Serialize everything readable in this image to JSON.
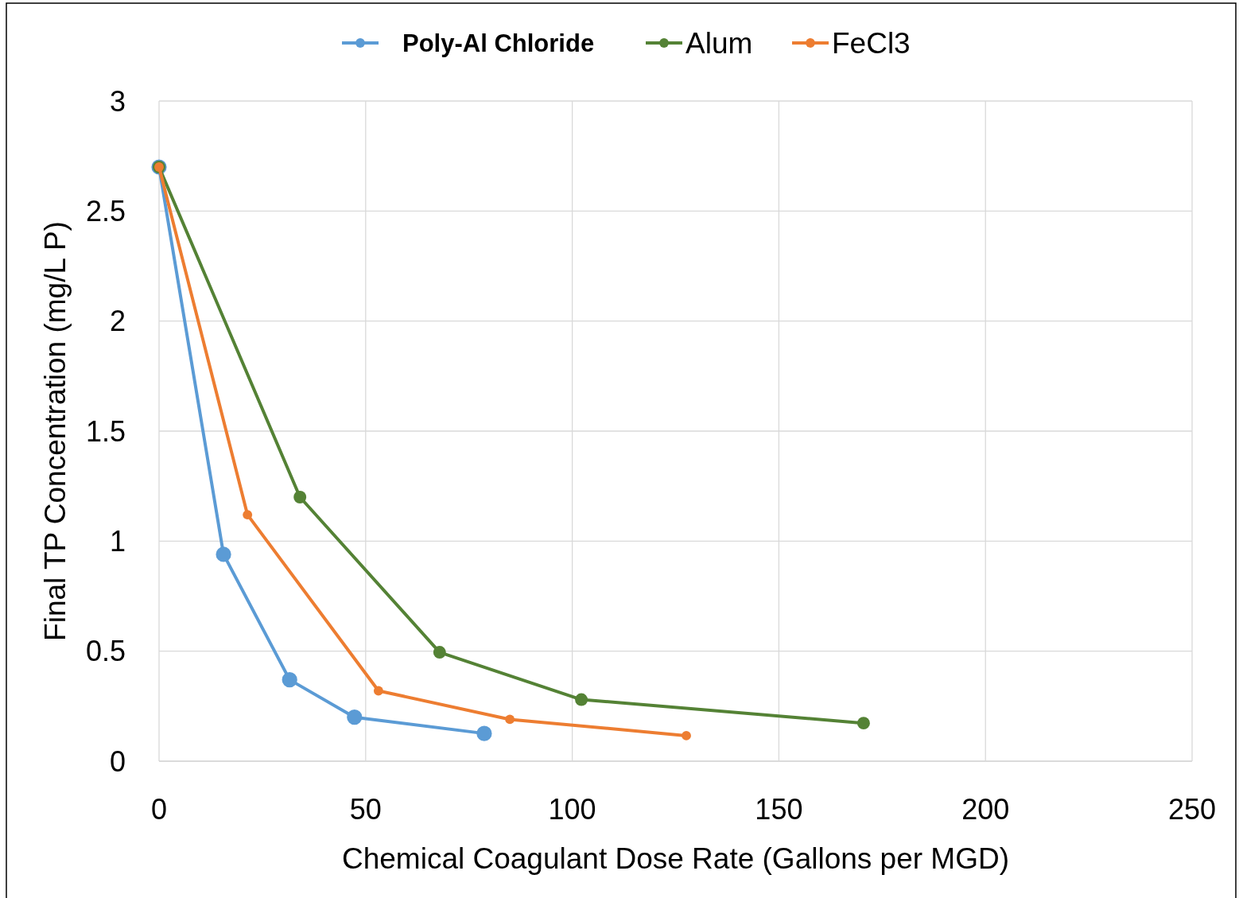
{
  "chart_data": {
    "type": "line",
    "xlabel": "Chemical Coagulant Dose Rate (Gallons per MGD)",
    "ylabel": "Final TP Concentration (mg/L P)",
    "xlim": [
      0,
      250
    ],
    "xticks": [
      0,
      50,
      100,
      150,
      200,
      250
    ],
    "ylim": [
      0,
      3
    ],
    "yticks": [
      0,
      0.5,
      1,
      1.5,
      2,
      2.5,
      3
    ],
    "grid": true,
    "legend": "top",
    "marker": "circle",
    "line_style": "solid",
    "series": [
      {
        "name": "Poly-Al Chloride",
        "color": "#5b9bd5",
        "x": [
          0,
          15.6,
          31.6,
          47.3,
          78.7
        ],
        "values": [
          2.7,
          0.94,
          0.37,
          0.2,
          0.126
        ]
      },
      {
        "name": "Alum",
        "color": "#548235",
        "x": [
          0,
          34.1,
          67.9,
          102.2,
          170.5
        ],
        "values": [
          2.7,
          1.2,
          0.495,
          0.28,
          0.173
        ]
      },
      {
        "name": "FeCl3",
        "color": "#ed7d31",
        "x": [
          0,
          21.4,
          53.1,
          84.9,
          127.6
        ],
        "values": [
          2.7,
          1.12,
          0.32,
          0.19,
          0.116
        ]
      }
    ]
  }
}
